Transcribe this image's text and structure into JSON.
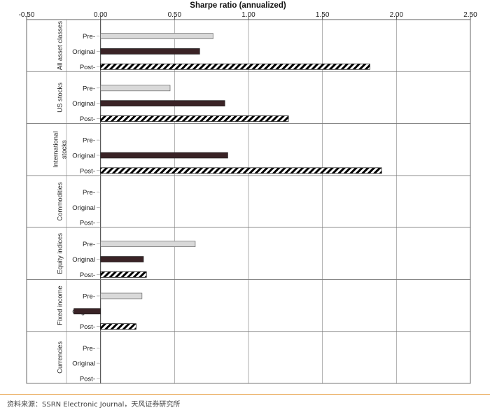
{
  "source_note": "资料来源：SSRN Electronic Journal，天风证券研究所",
  "colors": {
    "pre": "#d9d9d9",
    "original": "#3a2326",
    "post_hatch": "#000000",
    "grid": "#9a9a9a"
  },
  "chart_data": {
    "type": "bar",
    "orientation": "horizontal",
    "title": "Sharpe ratio (annualized)",
    "xlim": [
      -0.5,
      2.5
    ],
    "xticks": [
      "-0.50",
      "0.00",
      "0.50",
      "1.00",
      "1.50",
      "2.00",
      "2.50"
    ],
    "xtick_values": [
      -0.5,
      0,
      0.5,
      1.0,
      1.5,
      2.0,
      2.5
    ],
    "grid": true,
    "series_labels": [
      "Pre-",
      "Original",
      "Post-"
    ],
    "groups": [
      {
        "name": "All asset classes",
        "values": [
          0.76,
          0.67,
          1.82
        ]
      },
      {
        "name": "US stocks",
        "values": [
          0.47,
          0.84,
          1.27
        ]
      },
      {
        "name": "International stocks",
        "values": [
          null,
          0.86,
          1.9
        ]
      },
      {
        "name": "Commodities",
        "values": [
          null,
          null,
          null
        ]
      },
      {
        "name": "Equity indices",
        "values": [
          0.64,
          0.29,
          0.31
        ]
      },
      {
        "name": "Fixed income",
        "values": [
          0.28,
          -0.18,
          0.24
        ]
      },
      {
        "name": "Currencies",
        "values": [
          null,
          null,
          null
        ]
      }
    ]
  }
}
